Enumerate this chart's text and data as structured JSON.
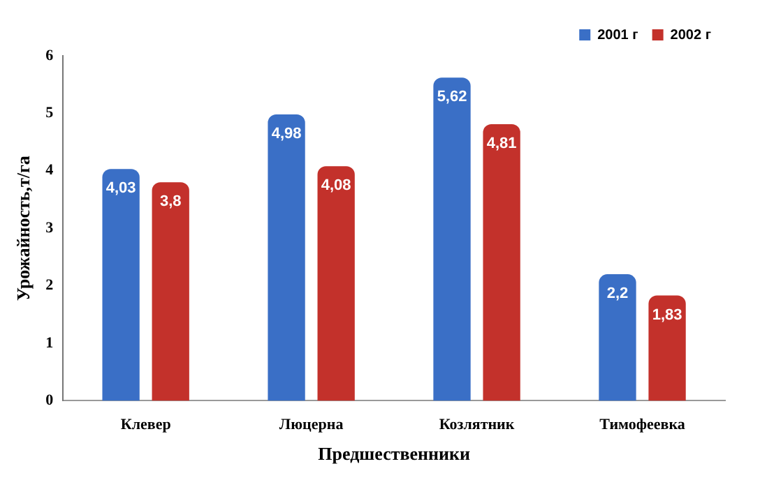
{
  "chart_data": {
    "type": "bar",
    "xlabel": "Предшественники",
    "ylabel": "Урожайность,т/га",
    "categories": [
      "Клевер",
      "Люцерна",
      "Козлятник",
      "Тимофеевка"
    ],
    "series": [
      {
        "name": "2001 г",
        "color": "#3a6fc6",
        "values": [
          4.03,
          4.98,
          5.62,
          2.2
        ],
        "value_labels": [
          "4,03",
          "4,98",
          "5,62",
          "2,2"
        ]
      },
      {
        "name": "2002 г",
        "color": "#c3312b",
        "values": [
          3.8,
          4.08,
          4.81,
          1.83
        ],
        "value_labels": [
          "3,8",
          "4,08",
          "4,81",
          "1,83"
        ]
      }
    ],
    "ylim": [
      0,
      6
    ],
    "yticks": [
      0,
      1,
      2,
      3,
      4,
      5,
      6
    ],
    "grid": false,
    "legend": "top right"
  }
}
